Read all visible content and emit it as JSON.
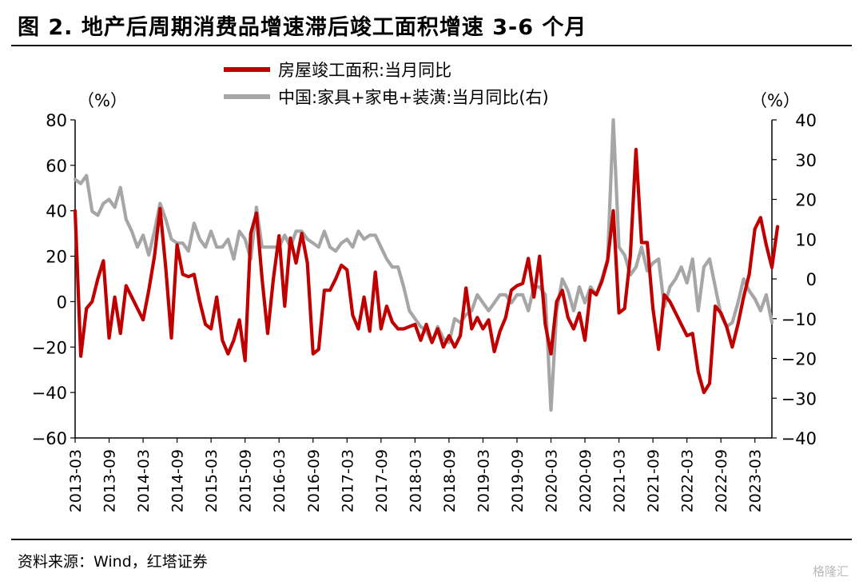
{
  "title": "图 2. 地产后周期消费品增速滞后竣工面积增速 3-6 个月",
  "source": "资料来源：Wind，红塔证券",
  "watermark": "格隆汇",
  "chart_data": {
    "type": "line",
    "left_unit": "（%）",
    "right_unit": "（%）",
    "y_left": {
      "min": -60,
      "max": 80,
      "ticks": [
        80,
        60,
        40,
        20,
        0,
        -20,
        -40,
        -60
      ]
    },
    "y_right": {
      "min": -40,
      "max": 40,
      "ticks": [
        40,
        30,
        20,
        10,
        0,
        -10,
        -20,
        -30,
        -40
      ]
    },
    "x_start": "2013-03",
    "x_end": "2023-06",
    "x_ticks": [
      "2013-03",
      "2013-09",
      "2014-03",
      "2014-09",
      "2015-03",
      "2015-09",
      "2016-03",
      "2016-09",
      "2017-03",
      "2017-09",
      "2018-03",
      "2018-09",
      "2019-03",
      "2019-09",
      "2020-03",
      "2020-09",
      "2021-03",
      "2021-09",
      "2022-03",
      "2022-09",
      "2023-03"
    ],
    "series": [
      {
        "name": "房屋竣工面积:当月同比",
        "axis": "left",
        "color": "#c00000",
        "points": [
          [
            "2013-03",
            40
          ],
          [
            "2013-04",
            -24
          ],
          [
            "2013-05",
            -3
          ],
          [
            "2013-06",
            0
          ],
          [
            "2013-07",
            10
          ],
          [
            "2013-08",
            18
          ],
          [
            "2013-09",
            -16
          ],
          [
            "2013-10",
            2
          ],
          [
            "2013-11",
            -14
          ],
          [
            "2013-12",
            7
          ],
          [
            "2014-01",
            2
          ],
          [
            "2014-02",
            -3
          ],
          [
            "2014-03",
            -8
          ],
          [
            "2014-04",
            5
          ],
          [
            "2014-05",
            20
          ],
          [
            "2014-06",
            41
          ],
          [
            "2014-07",
            15
          ],
          [
            "2014-08",
            -16
          ],
          [
            "2014-09",
            25
          ],
          [
            "2014-10",
            12
          ],
          [
            "2014-11",
            11
          ],
          [
            "2014-12",
            12
          ],
          [
            "2015-01",
            0
          ],
          [
            "2015-02",
            -10
          ],
          [
            "2015-03",
            -12
          ],
          [
            "2015-04",
            2
          ],
          [
            "2015-05",
            -17
          ],
          [
            "2015-06",
            -23
          ],
          [
            "2015-07",
            -17
          ],
          [
            "2015-08",
            -8
          ],
          [
            "2015-09",
            -26
          ],
          [
            "2015-10",
            30
          ],
          [
            "2015-11",
            39
          ],
          [
            "2015-12",
            10
          ],
          [
            "2016-01",
            -14
          ],
          [
            "2016-02",
            10
          ],
          [
            "2016-03",
            29
          ],
          [
            "2016-04",
            -2
          ],
          [
            "2016-05",
            28
          ],
          [
            "2016-06",
            17
          ],
          [
            "2016-07",
            30
          ],
          [
            "2016-08",
            17
          ],
          [
            "2016-09",
            -23
          ],
          [
            "2016-10",
            -21
          ],
          [
            "2016-11",
            5
          ],
          [
            "2016-12",
            5
          ],
          [
            "2017-01",
            10
          ],
          [
            "2017-02",
            16
          ],
          [
            "2017-03",
            14
          ],
          [
            "2017-04",
            -6
          ],
          [
            "2017-05",
            -12
          ],
          [
            "2017-06",
            2
          ],
          [
            "2017-07",
            -13
          ],
          [
            "2017-08",
            13
          ],
          [
            "2017-09",
            -12
          ],
          [
            "2017-10",
            -2
          ],
          [
            "2017-11",
            -9
          ],
          [
            "2017-12",
            -12
          ],
          [
            "2018-01",
            -12
          ],
          [
            "2018-02",
            -11
          ],
          [
            "2018-03",
            -10
          ],
          [
            "2018-04",
            -17
          ],
          [
            "2018-05",
            -10
          ],
          [
            "2018-06",
            -18
          ],
          [
            "2018-07",
            -12
          ],
          [
            "2018-08",
            -20
          ],
          [
            "2018-09",
            -15
          ],
          [
            "2018-10",
            -20
          ],
          [
            "2018-11",
            -15
          ],
          [
            "2018-12",
            6
          ],
          [
            "2019-01",
            -12
          ],
          [
            "2019-02",
            -7
          ],
          [
            "2019-03",
            -12
          ],
          [
            "2019-04",
            -8
          ],
          [
            "2019-05",
            -22
          ],
          [
            "2019-06",
            -13
          ],
          [
            "2019-07",
            -7
          ],
          [
            "2019-08",
            5
          ],
          [
            "2019-09",
            7
          ],
          [
            "2019-10",
            8
          ],
          [
            "2019-11",
            19
          ],
          [
            "2019-12",
            2
          ],
          [
            "2020-01",
            20
          ],
          [
            "2020-02",
            -10
          ],
          [
            "2020-03",
            -23
          ],
          [
            "2020-04",
            0
          ],
          [
            "2020-05",
            5
          ],
          [
            "2020-06",
            -7
          ],
          [
            "2020-07",
            -12
          ],
          [
            "2020-08",
            -5
          ],
          [
            "2020-09",
            -17
          ],
          [
            "2020-10",
            5
          ],
          [
            "2020-11",
            3
          ],
          [
            "2020-12",
            9
          ],
          [
            "2021-01",
            18
          ],
          [
            "2021-02",
            40
          ],
          [
            "2021-03",
            -5
          ],
          [
            "2021-04",
            -3
          ],
          [
            "2021-05",
            20
          ],
          [
            "2021-06",
            67
          ],
          [
            "2021-07",
            26
          ],
          [
            "2021-08",
            26
          ],
          [
            "2021-09",
            -3
          ],
          [
            "2021-10",
            -21
          ],
          [
            "2021-11",
            3
          ],
          [
            "2021-12",
            0
          ],
          [
            "2022-01",
            -5
          ],
          [
            "2022-02",
            -10
          ],
          [
            "2022-03",
            -15
          ],
          [
            "2022-04",
            -14
          ],
          [
            "2022-05",
            -31
          ],
          [
            "2022-06",
            -40
          ],
          [
            "2022-07",
            -36
          ],
          [
            "2022-08",
            -2
          ],
          [
            "2022-09",
            -5
          ],
          [
            "2022-10",
            -11
          ],
          [
            "2022-11",
            -20
          ],
          [
            "2022-12",
            -10
          ],
          [
            "2023-01",
            2
          ],
          [
            "2023-02",
            12
          ],
          [
            "2023-03",
            32
          ],
          [
            "2023-04",
            37
          ],
          [
            "2023-05",
            25
          ],
          [
            "2023-06",
            15
          ],
          [
            "2023-07",
            33
          ]
        ]
      },
      {
        "name": "中国:家具+家电+装潢:当月同比(右)",
        "axis": "right",
        "color": "#a6a6a6",
        "points": [
          [
            "2013-03",
            25
          ],
          [
            "2013-04",
            24
          ],
          [
            "2013-05",
            26
          ],
          [
            "2013-06",
            17
          ],
          [
            "2013-07",
            16
          ],
          [
            "2013-08",
            19
          ],
          [
            "2013-09",
            20
          ],
          [
            "2013-10",
            18
          ],
          [
            "2013-11",
            23
          ],
          [
            "2013-12",
            15
          ],
          [
            "2014-01",
            12
          ],
          [
            "2014-02",
            8
          ],
          [
            "2014-03",
            11
          ],
          [
            "2014-04",
            6
          ],
          [
            "2014-05",
            12
          ],
          [
            "2014-06",
            19
          ],
          [
            "2014-07",
            15
          ],
          [
            "2014-08",
            10
          ],
          [
            "2014-09",
            9
          ],
          [
            "2014-10",
            9
          ],
          [
            "2014-11",
            7
          ],
          [
            "2014-12",
            14
          ],
          [
            "2015-01",
            10
          ],
          [
            "2015-02",
            8
          ],
          [
            "2015-03",
            12
          ],
          [
            "2015-04",
            8
          ],
          [
            "2015-05",
            8
          ],
          [
            "2015-06",
            10
          ],
          [
            "2015-07",
            5
          ],
          [
            "2015-08",
            12
          ],
          [
            "2015-09",
            10
          ],
          [
            "2015-10",
            5
          ],
          [
            "2015-11",
            18
          ],
          [
            "2015-12",
            8
          ],
          [
            "2016-01",
            8
          ],
          [
            "2016-02",
            8
          ],
          [
            "2016-03",
            8
          ],
          [
            "2016-04",
            11
          ],
          [
            "2016-05",
            8
          ],
          [
            "2016-06",
            12
          ],
          [
            "2016-07",
            12
          ],
          [
            "2016-08",
            10
          ],
          [
            "2016-09",
            9
          ],
          [
            "2016-10",
            8
          ],
          [
            "2016-11",
            12
          ],
          [
            "2016-12",
            8
          ],
          [
            "2017-01",
            7
          ],
          [
            "2017-02",
            9
          ],
          [
            "2017-03",
            10
          ],
          [
            "2017-04",
            8
          ],
          [
            "2017-05",
            12
          ],
          [
            "2017-06",
            10
          ],
          [
            "2017-07",
            11
          ],
          [
            "2017-08",
            11
          ],
          [
            "2017-09",
            8
          ],
          [
            "2017-10",
            5
          ],
          [
            "2017-11",
            3
          ],
          [
            "2017-12",
            3
          ],
          [
            "2018-01",
            -2
          ],
          [
            "2018-02",
            -8
          ],
          [
            "2018-03",
            -10
          ],
          [
            "2018-04",
            -12
          ],
          [
            "2018-05",
            -13
          ],
          [
            "2018-06",
            -16
          ],
          [
            "2018-07",
            -12
          ],
          [
            "2018-08",
            -15
          ],
          [
            "2018-09",
            -16
          ],
          [
            "2018-10",
            -10
          ],
          [
            "2018-11",
            -11
          ],
          [
            "2018-12",
            -9
          ],
          [
            "2019-01",
            -8
          ],
          [
            "2019-02",
            -4
          ],
          [
            "2019-03",
            -6
          ],
          [
            "2019-04",
            -8
          ],
          [
            "2019-05",
            -6
          ],
          [
            "2019-06",
            -4
          ],
          [
            "2019-07",
            -4
          ],
          [
            "2019-08",
            -6
          ],
          [
            "2019-09",
            -4
          ],
          [
            "2019-10",
            -4
          ],
          [
            "2019-11",
            -8
          ],
          [
            "2019-12",
            -2
          ],
          [
            "2020-01",
            -2
          ],
          [
            "2020-02",
            -4
          ],
          [
            "2020-03",
            -33
          ],
          [
            "2020-04",
            -8
          ],
          [
            "2020-05",
            0
          ],
          [
            "2020-06",
            -3
          ],
          [
            "2020-07",
            -8
          ],
          [
            "2020-08",
            -2
          ],
          [
            "2020-09",
            -6
          ],
          [
            "2020-10",
            -2
          ],
          [
            "2020-11",
            -4
          ],
          [
            "2020-12",
            0
          ],
          [
            "2021-01",
            5
          ],
          [
            "2021-02",
            40
          ],
          [
            "2021-03",
            8
          ],
          [
            "2021-04",
            6
          ],
          [
            "2021-05",
            1
          ],
          [
            "2021-06",
            3
          ],
          [
            "2021-07",
            8
          ],
          [
            "2021-08",
            2
          ],
          [
            "2021-09",
            4
          ],
          [
            "2021-10",
            5
          ],
          [
            "2021-11",
            -7
          ],
          [
            "2021-12",
            -2
          ],
          [
            "2022-01",
            0
          ],
          [
            "2022-02",
            3
          ],
          [
            "2022-03",
            -1
          ],
          [
            "2022-04",
            5
          ],
          [
            "2022-05",
            -8
          ],
          [
            "2022-06",
            3
          ],
          [
            "2022-07",
            5
          ],
          [
            "2022-08",
            -2
          ],
          [
            "2022-09",
            -9
          ],
          [
            "2022-10",
            -12
          ],
          [
            "2022-11",
            -11
          ],
          [
            "2022-12",
            -6
          ],
          [
            "2023-01",
            0
          ],
          [
            "2023-02",
            -3
          ],
          [
            "2023-03",
            -5
          ],
          [
            "2023-04",
            -8
          ],
          [
            "2023-05",
            -4
          ],
          [
            "2023-06",
            -11
          ]
        ]
      }
    ]
  }
}
